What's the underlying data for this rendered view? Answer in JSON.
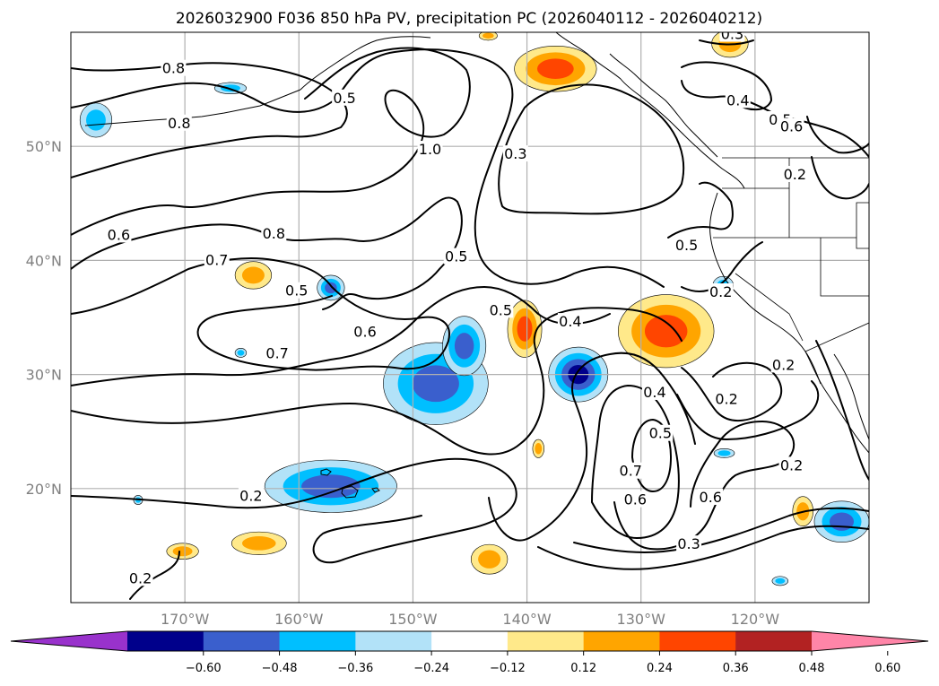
{
  "title": "2026032900 F036 850 hPa PV, precipitation PC (2026040112 - 2026040212)",
  "colors": {
    "tick_text": "#808080",
    "grid": "#b0b0b0",
    "contour": "#000000",
    "coast": "#000000"
  },
  "map": {
    "lon_range": [
      -180,
      -110
    ],
    "lat_range": [
      10,
      60
    ],
    "lat_labels": [
      {
        "value": 50,
        "label": "50°N"
      },
      {
        "value": 40,
        "label": "40°N"
      },
      {
        "value": 30,
        "label": "30°N"
      },
      {
        "value": 20,
        "label": "20°N"
      }
    ],
    "lon_labels": [
      {
        "value": -170,
        "label": "170°W"
      },
      {
        "value": -160,
        "label": "160°W"
      },
      {
        "value": -150,
        "label": "150°W"
      },
      {
        "value": -140,
        "label": "140°W"
      },
      {
        "value": -130,
        "label": "130°W"
      },
      {
        "value": -120,
        "label": "120°W"
      }
    ]
  },
  "contour_labels": [
    {
      "text": "0.8",
      "lon": -171,
      "lat": 56.8
    },
    {
      "text": "0.8",
      "lon": -170.5,
      "lat": 52.0
    },
    {
      "text": "0.5",
      "lon": -156,
      "lat": 54.2
    },
    {
      "text": "1.0",
      "lon": -148.5,
      "lat": 49.7
    },
    {
      "text": "0.3",
      "lon": -141,
      "lat": 49.3
    },
    {
      "text": "0.3",
      "lon": -122,
      "lat": 59.8
    },
    {
      "text": "0.4",
      "lon": -121.5,
      "lat": 54.0
    },
    {
      "text": "0.5",
      "lon": -117.8,
      "lat": 52.3
    },
    {
      "text": "0.6",
      "lon": -116.8,
      "lat": 51.7
    },
    {
      "text": "0.2",
      "lon": -116.5,
      "lat": 47.5
    },
    {
      "text": "0.6",
      "lon": -175.8,
      "lat": 42.2
    },
    {
      "text": "0.8",
      "lon": -162.2,
      "lat": 42.3
    },
    {
      "text": "0.7",
      "lon": -167.2,
      "lat": 40.0
    },
    {
      "text": "0.5",
      "lon": -160.2,
      "lat": 37.3
    },
    {
      "text": "0.5",
      "lon": -146.2,
      "lat": 40.3
    },
    {
      "text": "0.5",
      "lon": -142.3,
      "lat": 35.6
    },
    {
      "text": "0.4",
      "lon": -136.2,
      "lat": 34.6
    },
    {
      "text": "0.6",
      "lon": -154.2,
      "lat": 33.7
    },
    {
      "text": "0.7",
      "lon": -161.9,
      "lat": 31.8
    },
    {
      "text": "0.5",
      "lon": -126.0,
      "lat": 41.3
    },
    {
      "text": "0.2",
      "lon": -123.0,
      "lat": 37.2
    },
    {
      "text": "0.2",
      "lon": -117.5,
      "lat": 30.8
    },
    {
      "text": "0.4",
      "lon": -128.8,
      "lat": 28.4
    },
    {
      "text": "0.5",
      "lon": -128.3,
      "lat": 24.8
    },
    {
      "text": "0.7",
      "lon": -130.9,
      "lat": 21.5
    },
    {
      "text": "0.6",
      "lon": -130.5,
      "lat": 19.0
    },
    {
      "text": "0.2",
      "lon": -122.5,
      "lat": 27.8
    },
    {
      "text": "0.6",
      "lon": -123.9,
      "lat": 19.2
    },
    {
      "text": "0.2",
      "lon": -116.8,
      "lat": 22.0
    },
    {
      "text": "0.2",
      "lon": -164.2,
      "lat": 19.3
    },
    {
      "text": "0.3",
      "lon": -125.8,
      "lat": 15.1
    },
    {
      "text": "0.2",
      "lon": -173.9,
      "lat": 12.1
    }
  ],
  "colorbar": {
    "ticks": [
      "−0.60",
      "−0.48",
      "−0.36",
      "−0.24",
      "−0.12",
      "0.12",
      "0.24",
      "0.36",
      "0.48",
      "0.60"
    ],
    "colors": [
      "#9932cc",
      "#00008b",
      "#3a5fcd",
      "#00bfff",
      "#b2e2f8",
      "#ffffff",
      "#ffe98a",
      "#ffa500",
      "#ff4500",
      "#b22222",
      "#ff85a8"
    ]
  },
  "precip_blobs": [
    {
      "name": "gulf-alaska-positive",
      "lon": -137.5,
      "lat": 56.8,
      "rx": 3.6,
      "ry": 2.0,
      "levels": [
        "#ffe98a",
        "#ffa500",
        "#ff4500"
      ]
    },
    {
      "name": "ne-pacific-positive",
      "lon": -122.2,
      "lat": 59.0,
      "rx": 1.6,
      "ry": 1.2,
      "levels": [
        "#ffe98a",
        "#ffa500"
      ]
    },
    {
      "name": "aleutian-negative",
      "lon": -177.8,
      "lat": 52.3,
      "rx": 1.4,
      "ry": 1.5,
      "levels": [
        "#b2e2f8",
        "#00bfff"
      ]
    },
    {
      "name": "bering-negative",
      "lon": -166.0,
      "lat": 55.1,
      "rx": 1.4,
      "ry": 0.5,
      "levels": [
        "#b2e2f8",
        "#00bfff"
      ]
    },
    {
      "name": "small-north-positive",
      "lon": -143.4,
      "lat": 59.7,
      "rx": 0.8,
      "ry": 0.4,
      "levels": [
        "#ffe98a",
        "#ffa500"
      ]
    },
    {
      "name": "central-pacific-positive",
      "lon": -164.0,
      "lat": 38.7,
      "rx": 1.6,
      "ry": 1.2,
      "levels": [
        "#ffe98a",
        "#ffa500"
      ]
    },
    {
      "name": "central-pacific-negative",
      "lon": -157.2,
      "lat": 37.6,
      "rx": 1.2,
      "ry": 1.1,
      "levels": [
        "#b2e2f8",
        "#00bfff",
        "#3a5fcd"
      ]
    },
    {
      "name": "subtropical-negative-band",
      "lon": -148.0,
      "lat": 29.2,
      "rx": 4.6,
      "ry": 3.6,
      "levels": [
        "#b2e2f8",
        "#00bfff",
        "#3a5fcd"
      ]
    },
    {
      "name": "subtropical-negative-north",
      "lon": -145.5,
      "lat": 32.5,
      "rx": 1.9,
      "ry": 2.6,
      "levels": [
        "#b2e2f8",
        "#00bfff",
        "#3a5fcd"
      ]
    },
    {
      "name": "mid-pacific-positive",
      "lon": -140.2,
      "lat": 34.0,
      "rx": 1.5,
      "ry": 2.5,
      "levels": [
        "#ffe98a",
        "#ffa500",
        "#ff4500"
      ]
    },
    {
      "name": "mid-pacific-negative",
      "lon": -135.5,
      "lat": 30.0,
      "rx": 2.6,
      "ry": 2.4,
      "levels": [
        "#b2e2f8",
        "#00bfff",
        "#3a5fcd",
        "#00008b"
      ]
    },
    {
      "name": "california-positive",
      "lon": -127.8,
      "lat": 33.8,
      "rx": 4.2,
      "ry": 3.2,
      "levels": [
        "#ffe98a",
        "#ffa500",
        "#ff4500"
      ]
    },
    {
      "name": "hawaii-negative",
      "lon": -157.2,
      "lat": 20.2,
      "rx": 5.8,
      "ry": 2.3,
      "levels": [
        "#b2e2f8",
        "#00bfff",
        "#3a5fcd"
      ]
    },
    {
      "name": "southwest-positive",
      "lon": -163.5,
      "lat": 15.2,
      "rx": 2.4,
      "ry": 1.0,
      "levels": [
        "#ffe98a",
        "#ffa500"
      ]
    },
    {
      "name": "south-positive-a",
      "lon": -170.2,
      "lat": 14.5,
      "rx": 1.4,
      "ry": 0.7,
      "levels": [
        "#ffe98a",
        "#ffa500"
      ]
    },
    {
      "name": "south-positive-b",
      "lon": -143.3,
      "lat": 13.8,
      "rx": 1.6,
      "ry": 1.3,
      "levels": [
        "#ffe98a",
        "#ffa500"
      ]
    },
    {
      "name": "small-positive-c",
      "lon": -139.0,
      "lat": 23.5,
      "rx": 0.5,
      "ry": 0.8,
      "levels": [
        "#ffe98a",
        "#ffa500"
      ]
    },
    {
      "name": "mexico-positive",
      "lon": -115.8,
      "lat": 18.0,
      "rx": 0.9,
      "ry": 1.3,
      "levels": [
        "#ffe98a",
        "#ffa500"
      ]
    },
    {
      "name": "mexico-negative",
      "lon": -112.4,
      "lat": 17.1,
      "rx": 2.4,
      "ry": 1.8,
      "levels": [
        "#b2e2f8",
        "#00bfff",
        "#3a5fcd"
      ]
    },
    {
      "name": "baja-negative",
      "lon": -122.8,
      "lat": 37.8,
      "rx": 0.9,
      "ry": 0.8,
      "levels": [
        "#b2e2f8",
        "#00bfff"
      ]
    },
    {
      "name": "small-negative-east",
      "lon": -122.7,
      "lat": 23.1,
      "rx": 0.9,
      "ry": 0.4,
      "levels": [
        "#b2e2f8",
        "#00bfff"
      ]
    },
    {
      "name": "small-negative-south",
      "lon": -117.8,
      "lat": 11.9,
      "rx": 0.7,
      "ry": 0.4,
      "levels": [
        "#b2e2f8",
        "#00bfff"
      ]
    },
    {
      "name": "tiny-negative-a",
      "lon": -165.1,
      "lat": 31.9,
      "rx": 0.5,
      "ry": 0.4,
      "levels": [
        "#b2e2f8",
        "#00bfff"
      ]
    },
    {
      "name": "tiny-negative-b",
      "lon": -174.1,
      "lat": 19.0,
      "rx": 0.4,
      "ry": 0.4,
      "levels": [
        "#b2e2f8",
        "#00bfff"
      ]
    }
  ]
}
